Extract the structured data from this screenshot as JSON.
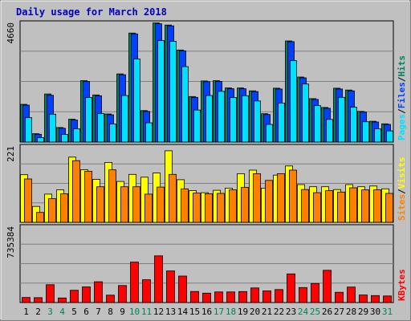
{
  "colors": {
    "page_bg": "#c0c0c0",
    "plot_bg": "#c0c0c0",
    "border": "#808080",
    "title": "#0000c0",
    "hits": "#00805c",
    "files": "#0040ff",
    "pages": "#00e0ff",
    "visits": "#ffff00",
    "sites": "#ff8000",
    "kbytes": "#ff0000",
    "weekend_day": "#00805c",
    "day": "#000000"
  },
  "chart_data": {
    "type": "bar",
    "title": "Daily usage for March 2018",
    "categories": [
      "1",
      "2",
      "3",
      "4",
      "5",
      "6",
      "7",
      "8",
      "9",
      "10",
      "11",
      "12",
      "13",
      "14",
      "15",
      "16",
      "17",
      "18",
      "19",
      "20",
      "21",
      "22",
      "23",
      "24",
      "25",
      "26",
      "27",
      "28",
      "29",
      "30",
      "31"
    ],
    "weekend_days": [
      "3",
      "4",
      "10",
      "11",
      "17",
      "18",
      "24",
      "25",
      "31"
    ],
    "panels": [
      {
        "id": "hits-files-pages",
        "ymax": 4660,
        "ymax_label": "4660",
        "legend": [
          {
            "text": "Pages",
            "color": "#00e0ff"
          },
          {
            "text": "/",
            "color": "#000000"
          },
          {
            "text": "Files",
            "color": "#0040ff"
          },
          {
            "text": "/",
            "color": "#000000"
          },
          {
            "text": "Hits",
            "color": "#00805c"
          }
        ],
        "series": [
          {
            "name": "Hits",
            "color": "#00805c",
            "values": [
              1450,
              320,
              1850,
              560,
              880,
              2360,
              1810,
              1080,
              2620,
              4190,
              1210,
              4580,
              4500,
              3540,
              1750,
              2350,
              2360,
              2080,
              2080,
              1970,
              1090,
              2070,
              3890,
              2500,
              1670,
              1330,
              2070,
              2000,
              1180,
              800,
              700
            ]
          },
          {
            "name": "Files",
            "color": "#0040ff",
            "values": [
              1420,
              300,
              1800,
              530,
              850,
              2330,
              1780,
              1050,
              2590,
              4160,
              1180,
              4550,
              4470,
              3510,
              1720,
              2320,
              2330,
              2050,
              2050,
              1940,
              1060,
              2040,
              3860,
              2470,
              1640,
              1300,
              2040,
              1970,
              1150,
              770,
              680
            ]
          },
          {
            "name": "Pages",
            "color": "#00e0ff",
            "values": [
              940,
              170,
              1070,
              290,
              510,
              1710,
              1100,
              690,
              1790,
              3190,
              740,
              3900,
              3870,
              2900,
              1230,
              1790,
              1950,
              1710,
              1780,
              1580,
              680,
              1500,
              3130,
              2230,
              1400,
              870,
              1720,
              1340,
              780,
              510,
              430
            ]
          }
        ]
      },
      {
        "id": "visits-sites",
        "ymax": 221,
        "ymax_label": "221",
        "legend": [
          {
            "text": "Sites",
            "color": "#ff8000"
          },
          {
            "text": "/",
            "color": "#000000"
          },
          {
            "text": "Visits",
            "color": "#ffff00"
          }
        ],
        "series": [
          {
            "name": "Visits",
            "color": "#ffff00",
            "values": [
              135,
              45,
              80,
              92,
              185,
              149,
              122,
              170,
              116,
              136,
              128,
              140,
              203,
              121,
              90,
              84,
              91,
              97,
              138,
              148,
              97,
              134,
              160,
              107,
              101,
              101,
              93,
              107,
              101,
              103,
              95
            ]
          },
          {
            "name": "Sites",
            "color": "#ff8000",
            "values": [
              123,
              28,
              67,
              81,
              175,
              145,
              101,
              149,
              101,
              101,
              80,
              100,
              136,
              95,
              83,
              81,
              82,
              92,
              99,
              138,
              119,
              138,
              148,
              93,
              84,
              90,
              86,
              98,
              92,
              92,
              82
            ]
          }
        ]
      },
      {
        "id": "kbytes",
        "ymax": 735384,
        "ymax_label": "735384",
        "legend": [
          {
            "text": "KBytes",
            "color": "#ff0000"
          }
        ],
        "series": [
          {
            "name": "KBytes",
            "color": "#ff0000",
            "values": [
              48000,
              46000,
              168000,
              43000,
              116000,
              148000,
              196000,
              70000,
              161000,
              382000,
              215000,
              441000,
              299000,
              250000,
              105000,
              89000,
              100000,
              100000,
              104000,
              138000,
              110000,
              123000,
              271000,
              142000,
              180000,
              305000,
              97000,
              146000,
              71000,
              66000,
              62000
            ]
          }
        ]
      }
    ]
  }
}
